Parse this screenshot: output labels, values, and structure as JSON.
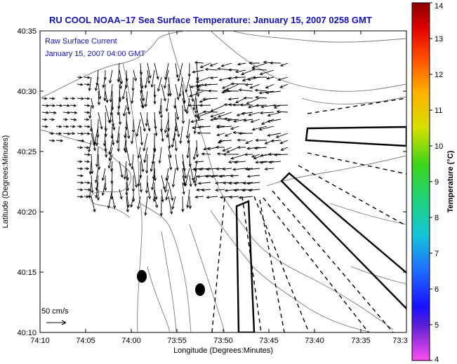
{
  "title": "RU COOL  NOAA–17  Sea Surface Temperature:  January 15, 2007 0258 GMT",
  "legend": {
    "line1": "Raw Surface Current",
    "line2": "January 15, 2007 04:00 GMT"
  },
  "scale_label": "50 cm/s",
  "x_axis": {
    "label": "Longitude (Degrees:Minutes)",
    "ticks": [
      "74:10",
      "74:05",
      "74:00",
      "73:55",
      "73:50",
      "73:45",
      "73:40",
      "73:35",
      "73:3"
    ]
  },
  "y_axis": {
    "label": "Latitude (Degrees:Minutes)",
    "ticks": [
      "40:35",
      "40:30",
      "40:25",
      "40:20",
      "40:15",
      "40:10"
    ]
  },
  "colorbar": {
    "label": "Temperature (°C)",
    "ticks": [
      "14",
      "13",
      "12",
      "11",
      "10",
      "9",
      "8",
      "7",
      "6",
      "5",
      "4"
    ],
    "range": [
      4,
      14
    ]
  },
  "colors": {
    "title": "#1414b4",
    "land": "#ffffff",
    "water": "#ffffff",
    "contour": "#808080"
  }
}
